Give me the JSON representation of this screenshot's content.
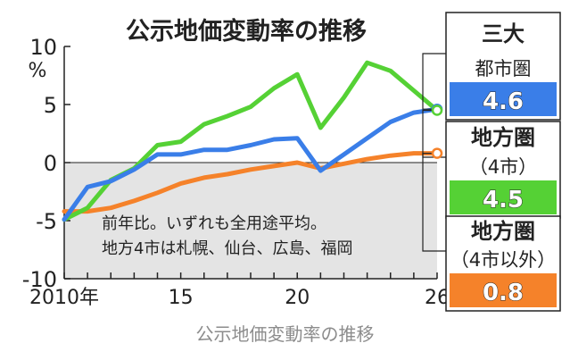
{
  "chart_data": {
    "type": "line",
    "title": "公示地価変動率の推移",
    "ylabel": "%",
    "ylim": [
      -10,
      10
    ],
    "y_ticks": [
      "10",
      "5",
      "0",
      "-5",
      "-10"
    ],
    "x_range": [
      2010,
      2026
    ],
    "x_tick_labels": [
      {
        "year": 2010,
        "label": "2010年"
      },
      {
        "year": 2015,
        "label": "15"
      },
      {
        "year": 2020,
        "label": "20"
      },
      {
        "year": 2026,
        "label": "26"
      }
    ],
    "note_lines": [
      "前年比。いずれも全用途平均。",
      "地方4市は札幌、仙台、広島、福岡"
    ],
    "grid": false,
    "series": [
      {
        "name": "三大都市圏",
        "name_lines": [
          "三大",
          "都市圏"
        ],
        "color": "#3a7ee8",
        "end_label": "4.6",
        "x": [
          2010,
          2011,
          2012,
          2013,
          2014,
          2015,
          2016,
          2017,
          2018,
          2019,
          2020,
          2021,
          2022,
          2023,
          2024,
          2025,
          2026
        ],
        "values": [
          -4.9,
          -2.1,
          -1.6,
          -0.6,
          0.7,
          0.7,
          1.1,
          1.1,
          1.5,
          2.0,
          2.1,
          -0.7,
          0.7,
          2.1,
          3.5,
          4.3,
          4.6
        ]
      },
      {
        "name": "地方圏(4市)",
        "name_lines": [
          "地方圏",
          "（4市）"
        ],
        "color": "#55d135",
        "end_label": "4.5",
        "x": [
          2010,
          2011,
          2012,
          2013,
          2014,
          2015,
          2016,
          2017,
          2018,
          2019,
          2020,
          2021,
          2022,
          2023,
          2024,
          2025,
          2026
        ],
        "values": [
          -4.9,
          -3.9,
          -1.5,
          -0.5,
          1.5,
          1.8,
          3.3,
          4.0,
          4.8,
          6.4,
          7.6,
          3.0,
          5.6,
          8.6,
          7.9,
          6.2,
          4.5
        ]
      },
      {
        "name": "地方圏(4市以外)",
        "name_lines": [
          "地方圏",
          "（4市以外）"
        ],
        "color": "#f5822a",
        "end_label": "0.8",
        "x": [
          2010,
          2011,
          2012,
          2013,
          2014,
          2015,
          2016,
          2017,
          2018,
          2019,
          2020,
          2021,
          2022,
          2023,
          2024,
          2025,
          2026
        ],
        "values": [
          -4.2,
          -4.2,
          -3.9,
          -3.3,
          -2.6,
          -1.8,
          -1.3,
          -1.0,
          -0.6,
          -0.3,
          0.0,
          -0.5,
          -0.1,
          0.3,
          0.6,
          0.8,
          0.8
        ]
      }
    ]
  },
  "caption": "公示地価変動率の推移"
}
